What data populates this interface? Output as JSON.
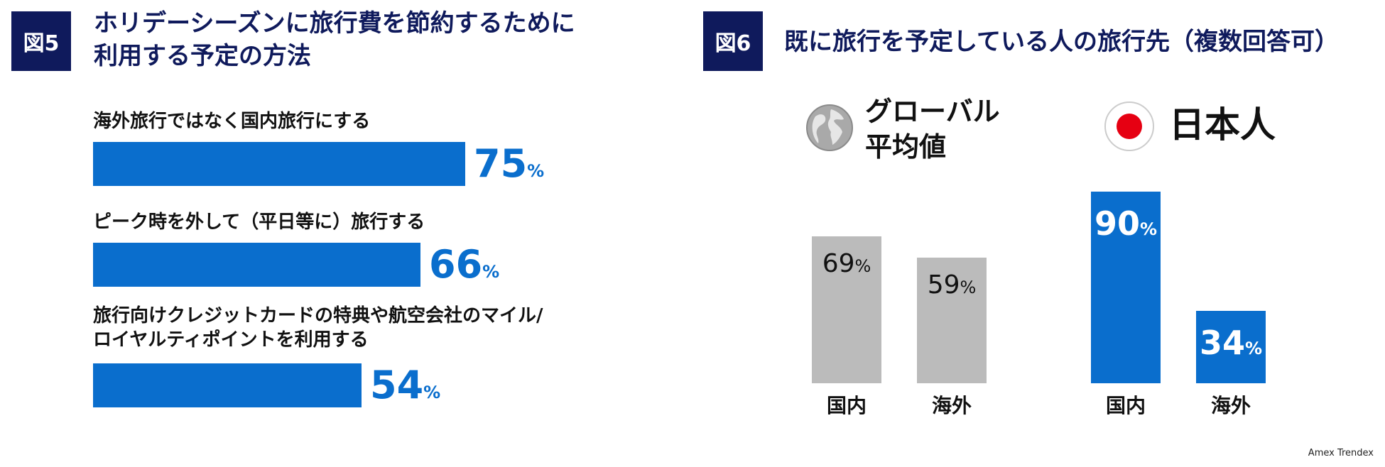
{
  "chart_data": [
    {
      "type": "bar",
      "orientation": "horizontal",
      "badge": "図5",
      "title": "ホリデーシーズンに旅行費を節約するために\n利用する予定の方法",
      "categories": [
        "海外旅行ではなく国内旅行にする",
        "ピーク時を外して（平日等に）旅行する",
        "旅行向けクレジットカードの特典や航空会社のマイル/\nロイヤルティポイントを利用する"
      ],
      "values": [
        75,
        66,
        54
      ],
      "unit": "%",
      "xlim": [
        0,
        100
      ],
      "bar_color": "#0a6ecd"
    },
    {
      "type": "bar",
      "badge": "図6",
      "title": "既に旅行を予定している人の旅行先（複数回答可）",
      "groups": [
        {
          "name": "グローバル\n平均値",
          "icon": "globe-icon",
          "color": "#bbbbbb",
          "value_color": "#111111",
          "categories": [
            "国内",
            "海外"
          ],
          "values": [
            69,
            59
          ]
        },
        {
          "name": "日本人",
          "icon": "japan-flag-icon",
          "color": "#0a6ecd",
          "value_color": "#ffffff",
          "categories": [
            "国内",
            "海外"
          ],
          "values": [
            90,
            34
          ]
        }
      ],
      "unit": "%",
      "ylim": [
        0,
        100
      ]
    }
  ],
  "source": "Amex Trendex"
}
